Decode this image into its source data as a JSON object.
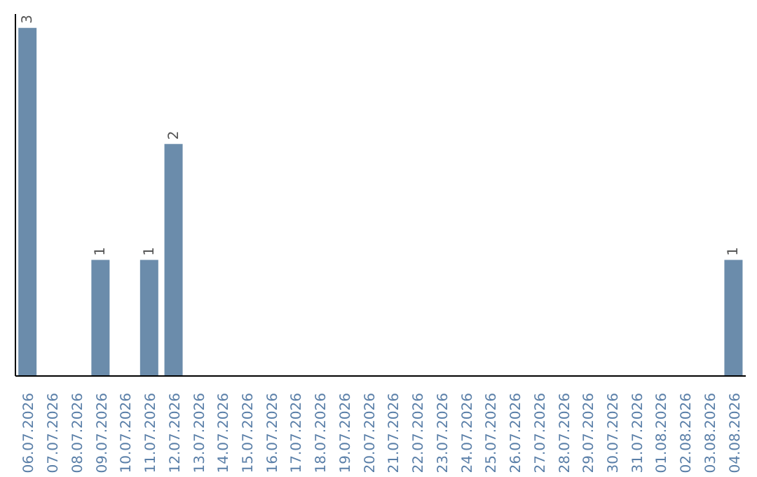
{
  "chart_data": {
    "type": "bar",
    "categories": [
      "06.07.2026",
      "07.07.2026",
      "08.07.2026",
      "09.07.2026",
      "10.07.2026",
      "11.07.2026",
      "12.07.2026",
      "13.07.2026",
      "14.07.2026",
      "15.07.2026",
      "16.07.2026",
      "17.07.2026",
      "18.07.2026",
      "19.07.2026",
      "20.07.2026",
      "21.07.2026",
      "22.07.2026",
      "23.07.2026",
      "24.07.2026",
      "25.07.2026",
      "26.07.2026",
      "27.07.2026",
      "28.07.2026",
      "29.07.2026",
      "30.07.2026",
      "31.07.2026",
      "01.08.2026",
      "02.08.2026",
      "03.08.2026",
      "04.08.2026"
    ],
    "values": [
      3,
      0,
      0,
      1,
      0,
      1,
      2,
      0,
      0,
      0,
      0,
      0,
      0,
      0,
      0,
      0,
      0,
      0,
      0,
      0,
      0,
      0,
      0,
      0,
      0,
      0,
      0,
      0,
      0,
      1
    ],
    "value_labels": [
      "3",
      null,
      null,
      "1",
      null,
      "1",
      "2",
      null,
      null,
      null,
      null,
      null,
      null,
      null,
      null,
      null,
      null,
      null,
      null,
      null,
      null,
      null,
      null,
      null,
      null,
      null,
      null,
      null,
      null,
      "1"
    ],
    "color": "#6b8cab",
    "grid": false,
    "legend": false
  }
}
